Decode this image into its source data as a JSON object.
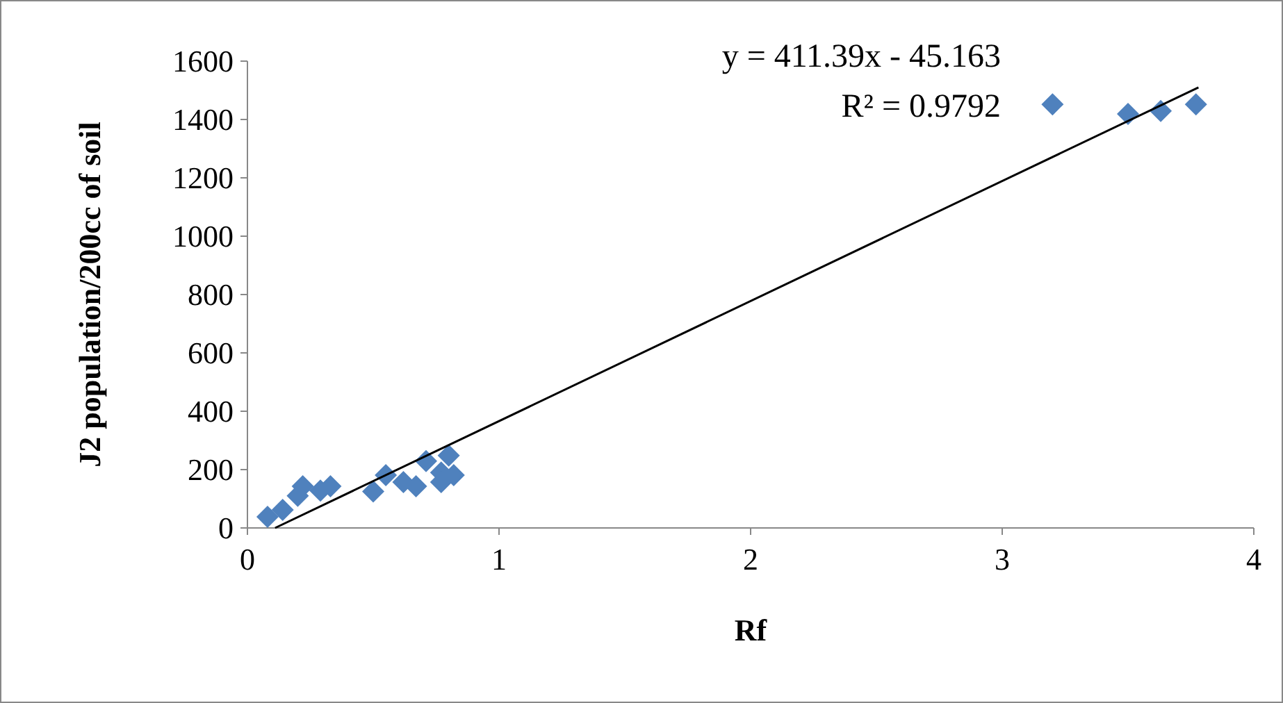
{
  "chart_data": {
    "type": "scatter",
    "xlabel": "Rf",
    "ylabel": "J2 population/200cc of soil",
    "xlim": [
      0,
      4
    ],
    "xticks": [
      0,
      1,
      2,
      3,
      4
    ],
    "ylim": [
      0,
      1600
    ],
    "yticks": [
      0,
      200,
      400,
      600,
      800,
      1000,
      1200,
      1400,
      1600
    ],
    "grid": false,
    "marker": "diamond",
    "annotations": [
      "y = 411.39x - 45.163",
      "R² = 0.9792"
    ],
    "series": [
      {
        "color": "#4f81bd",
        "x": [
          0.08,
          0.14,
          0.2,
          0.22,
          0.29,
          0.33,
          0.5,
          0.55,
          0.62,
          0.67,
          0.71,
          0.77,
          0.77,
          0.8,
          0.82,
          3.2,
          3.5,
          3.63,
          3.77
        ],
        "values": [
          38,
          62,
          110,
          143,
          128,
          143,
          125,
          181,
          157,
          143,
          229,
          190,
          157,
          248,
          181,
          1452,
          1419,
          1429,
          1452
        ]
      },
      {
        "type": "line",
        "color": "#000000",
        "x": [
          0.11,
          3.78
        ],
        "values": [
          0,
          1510
        ],
        "marker": "none"
      }
    ]
  }
}
